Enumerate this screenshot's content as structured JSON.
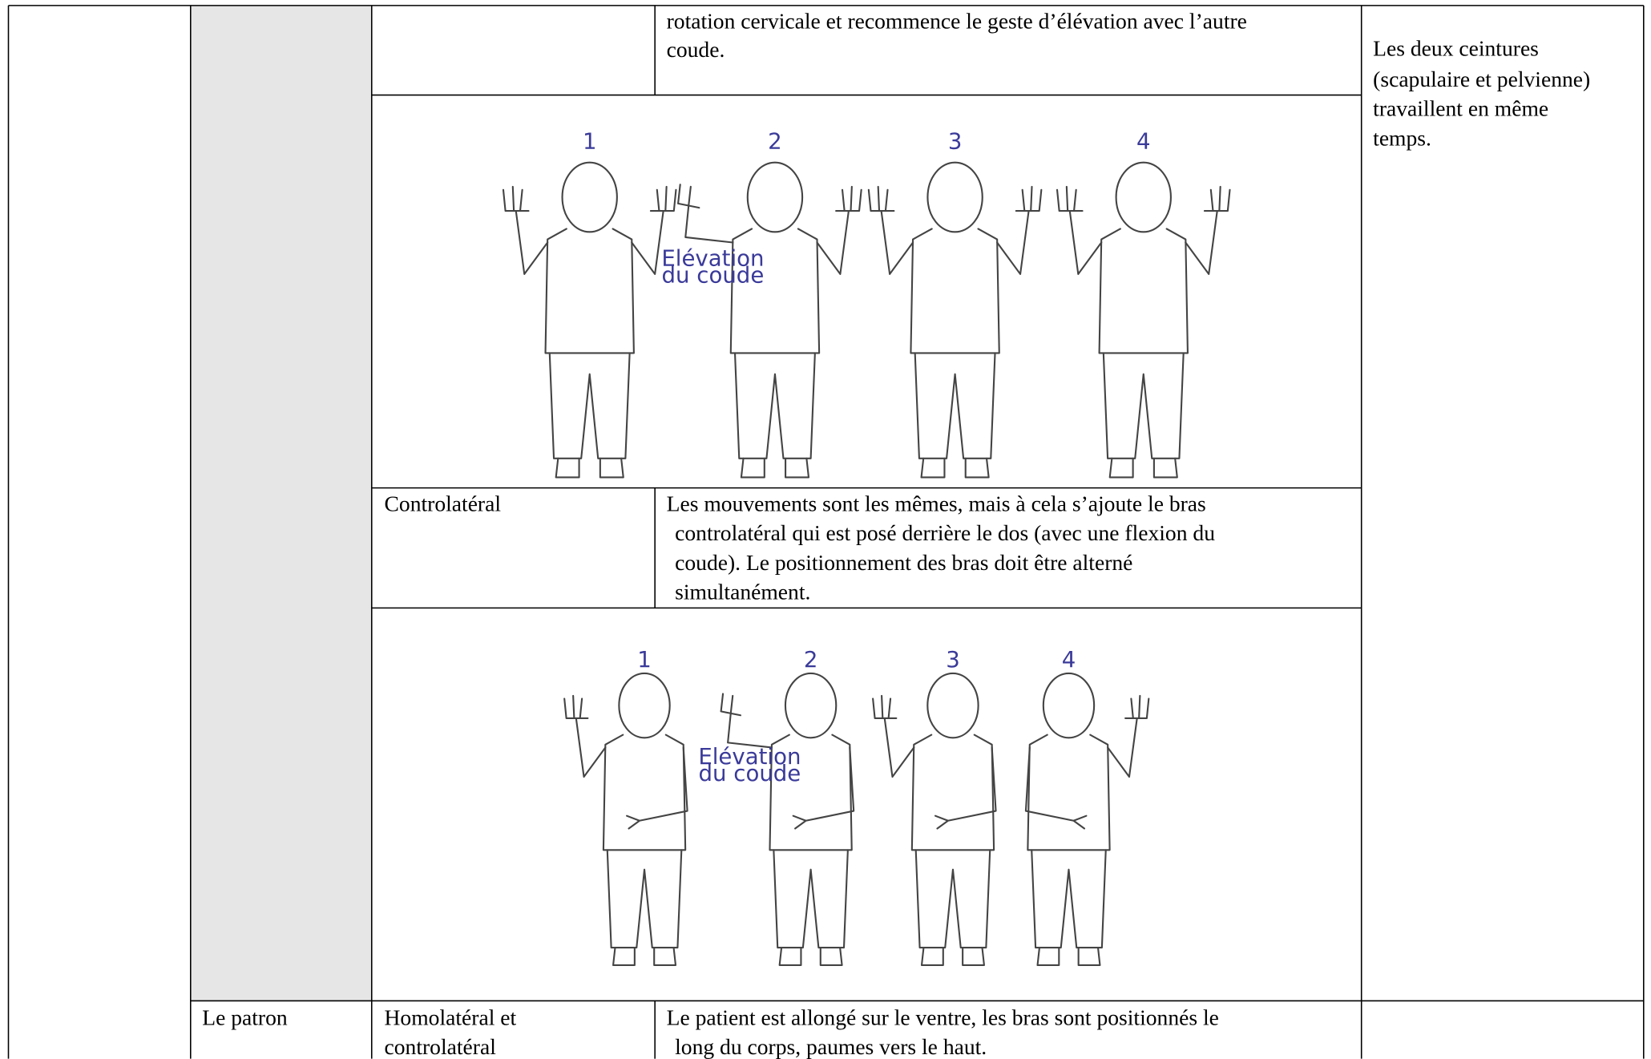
{
  "continuation": {
    "description_lines": [
      "rotation cervicale et recommence le geste d’élévation avec l’autre",
      "coude."
    ],
    "note_lines": [
      "Les deux ceintures",
      "(scapulaire et pelvienne)",
      "travaillent en même",
      "temps."
    ]
  },
  "figure_homolateral": {
    "numbers": [
      "1",
      "2",
      "3",
      "4"
    ],
    "annotation": [
      "Elévation",
      "du coude"
    ]
  },
  "controlateral": {
    "label": "Controlatéral",
    "description_lines": [
      "Les mouvements sont les mêmes, mais à cela s’ajoute le bras",
      "controlatéral qui est posé derrière le dos (avec une flexion du",
      "coude). Le positionnement des bras doit être alterné",
      "simultanément."
    ]
  },
  "figure_controlateral": {
    "numbers": [
      "1",
      "2",
      "3",
      "4"
    ],
    "annotation": [
      "Elévation",
      "du coude"
    ]
  },
  "patron_row": {
    "name": "Le patron",
    "label_lines": [
      "Homolatéral et",
      "controlatéral"
    ],
    "description_lines": [
      "Le patient est allongé sur le ventre, les bras sont positionnés le",
      "long du corps, paumes vers le haut."
    ]
  }
}
